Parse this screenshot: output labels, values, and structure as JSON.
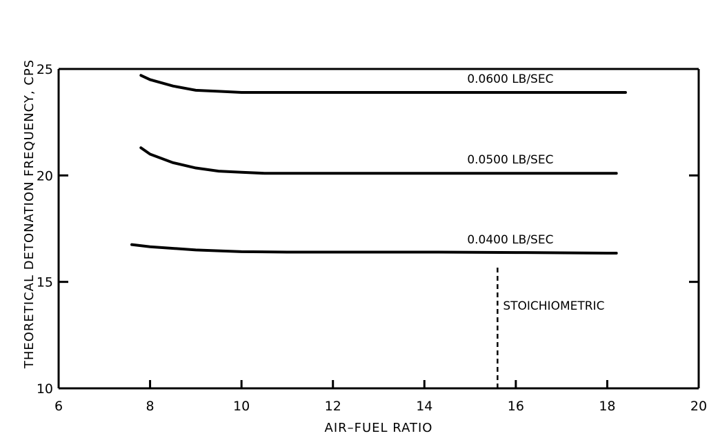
{
  "chart_data": {
    "type": "line",
    "xlabel": "AIR–FUEL RATIO",
    "ylabel": "THEORETICAL DETONATION FREQUENCY, CPS",
    "xlim": [
      6,
      20
    ],
    "ylim": [
      10,
      25
    ],
    "x_ticks": [
      6,
      8,
      10,
      12,
      14,
      16,
      18,
      20
    ],
    "y_ticks": [
      10,
      15,
      20,
      25
    ],
    "grid": false,
    "series": [
      {
        "name": "0.0600 LB/SEC",
        "x": [
          7.8,
          8.0,
          8.5,
          9.0,
          9.5,
          10.0,
          11.0,
          12.0,
          14.0,
          16.0,
          18.0,
          18.4
        ],
        "y": [
          24.7,
          24.5,
          24.2,
          24.0,
          23.95,
          23.9,
          23.9,
          23.9,
          23.9,
          23.9,
          23.9,
          23.9
        ]
      },
      {
        "name": "0.0500 LB/SEC",
        "x": [
          7.8,
          8.0,
          8.5,
          9.0,
          9.5,
          10.0,
          10.5,
          11.0,
          12.0,
          14.0,
          16.0,
          18.0,
          18.2
        ],
        "y": [
          21.3,
          21.0,
          20.6,
          20.35,
          20.2,
          20.15,
          20.1,
          20.1,
          20.1,
          20.1,
          20.1,
          20.1,
          20.1
        ]
      },
      {
        "name": "0.0400 LB/SEC",
        "x": [
          7.6,
          8.0,
          9.0,
          10.0,
          11.0,
          12.0,
          14.0,
          16.0,
          18.0,
          18.2
        ],
        "y": [
          16.75,
          16.65,
          16.5,
          16.42,
          16.4,
          16.4,
          16.4,
          16.38,
          16.35,
          16.35
        ]
      }
    ],
    "reference_lines": [
      {
        "label": "STOICHIOMETRIC",
        "x": 15.6,
        "y_from": 10,
        "y_to": 15.8
      }
    ]
  }
}
